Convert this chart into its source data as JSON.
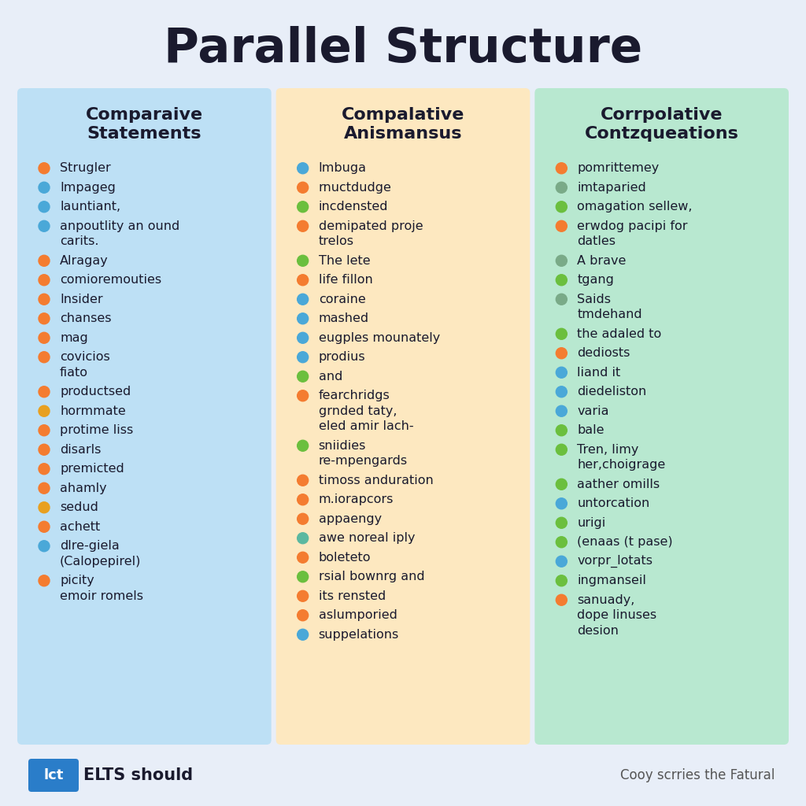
{
  "title": "Parallel Structure",
  "bg_color": "#e8eef8",
  "title_color": "#1a1a2e",
  "columns": [
    {
      "heading": "Comparaive\nStatements",
      "bg_color": "#bde0f5",
      "items": [
        {
          "color": "#f47c30",
          "text": "Strugler"
        },
        {
          "color": "#4aa8d8",
          "text": "Impageg"
        },
        {
          "color": "#4aa8d8",
          "text": "launtiant,"
        },
        {
          "color": "#4aa8d8",
          "text": "anpoutlity an ound\ncarits."
        },
        {
          "color": "#f47c30",
          "text": "Alragay"
        },
        {
          "color": "#f47c30",
          "text": "comioremouties"
        },
        {
          "color": "#f47c30",
          "text": "Insider"
        },
        {
          "color": "#f47c30",
          "text": "chanses"
        },
        {
          "color": "#f47c30",
          "text": "mag"
        },
        {
          "color": "#f47c30",
          "text": "covicios\nfiato"
        },
        {
          "color": "#f47c30",
          "text": "productsed"
        },
        {
          "color": "#e8a020",
          "text": "hormmate"
        },
        {
          "color": "#f47c30",
          "text": "protime liss"
        },
        {
          "color": "#f47c30",
          "text": "disarls"
        },
        {
          "color": "#f47c30",
          "text": "premicted"
        },
        {
          "color": "#f47c30",
          "text": "ahamly"
        },
        {
          "color": "#e8a020",
          "text": "sedud"
        },
        {
          "color": "#f47c30",
          "text": "achett"
        },
        {
          "color": "#4aa8d8",
          "text": "dlre-giela\n(Calopepirel)"
        },
        {
          "color": "#f47c30",
          "text": "picity\nemoir romels"
        }
      ]
    },
    {
      "heading": "Compalative\nAnismansus",
      "bg_color": "#fde8c0",
      "items": [
        {
          "color": "#4aa8d8",
          "text": "Imbuga"
        },
        {
          "color": "#f47c30",
          "text": "rnuctdudge"
        },
        {
          "color": "#6bbf3e",
          "text": "incdensted"
        },
        {
          "color": "#f47c30",
          "text": "demipated proje\ntrelos"
        },
        {
          "color": "#6bbf3e",
          "text": "The lete"
        },
        {
          "color": "#f47c30",
          "text": "life fillon"
        },
        {
          "color": "#4aa8d8",
          "text": "coraine"
        },
        {
          "color": "#4aa8d8",
          "text": "mashed"
        },
        {
          "color": "#4aa8d8",
          "text": "eugples mounately"
        },
        {
          "color": "#4aa8d8",
          "text": "prodius"
        },
        {
          "color": "#6bbf3e",
          "text": "and"
        },
        {
          "color": "#f47c30",
          "text": "fearchridgs\ngrnded taty,\neled amir lach-"
        },
        {
          "color": "#6bbf3e",
          "text": "sniidies\nre-mpengards"
        },
        {
          "color": "#f47c30",
          "text": "timoss anduration"
        },
        {
          "color": "#f47c30",
          "text": "m.iorapcors"
        },
        {
          "color": "#f47c30",
          "text": "appaengy"
        },
        {
          "color": "#5bb8a0",
          "text": "awe noreal iply"
        },
        {
          "color": "#f47c30",
          "text": "boleteto"
        },
        {
          "color": "#6bbf3e",
          "text": "rsial bownrg and"
        },
        {
          "color": "#f47c30",
          "text": "its rensted"
        },
        {
          "color": "#f47c30",
          "text": "aslumporied"
        },
        {
          "color": "#4aa8d8",
          "text": "suppelations"
        }
      ]
    },
    {
      "heading": "Corrpolative\nContzqueations",
      "bg_color": "#b8e8d0",
      "items": [
        {
          "color": "#f47c30",
          "text": "pomrittemey"
        },
        {
          "color": "#7aaa88",
          "text": "imtaparied"
        },
        {
          "color": "#6bbf3e",
          "text": "omagation sellew,"
        },
        {
          "color": "#f47c30",
          "text": "erwdog pacipi for\ndatles"
        },
        {
          "color": "#7aaa88",
          "text": "A brave"
        },
        {
          "color": "#6bbf3e",
          "text": "tgang"
        },
        {
          "color": "#7aaa88",
          "text": "Saids\ntmdehand"
        },
        {
          "color": "#6bbf3e",
          "text": "the adaled to"
        },
        {
          "color": "#f47c30",
          "text": "dediosts"
        },
        {
          "color": "#4aa8d8",
          "text": "liand it"
        },
        {
          "color": "#4aa8d8",
          "text": "diedeliston"
        },
        {
          "color": "#4aa8d8",
          "text": "varia"
        },
        {
          "color": "#6bbf3e",
          "text": "bale"
        },
        {
          "color": "#6bbf3e",
          "text": "Tren, limy\nher,choigrage"
        },
        {
          "color": "#6bbf3e",
          "text": "aather omills"
        },
        {
          "color": "#4aa8d8",
          "text": "untorcation"
        },
        {
          "color": "#6bbf3e",
          "text": "urigi"
        },
        {
          "color": "#6bbf3e",
          "text": "(enaas (t pase)"
        },
        {
          "color": "#4aa8d8",
          "text": "vorpr_lotats"
        },
        {
          "color": "#6bbf3e",
          "text": "ingmanseil"
        },
        {
          "color": "#f47c30",
          "text": "sanuady,\ndope linuses\ndesion"
        }
      ]
    }
  ],
  "footer_badge_color": "#2a7dc9",
  "footer_badge_text": "lct",
  "footer_brand_text": "ELTS should",
  "footer_right": "Cooy scrries the Fatural"
}
